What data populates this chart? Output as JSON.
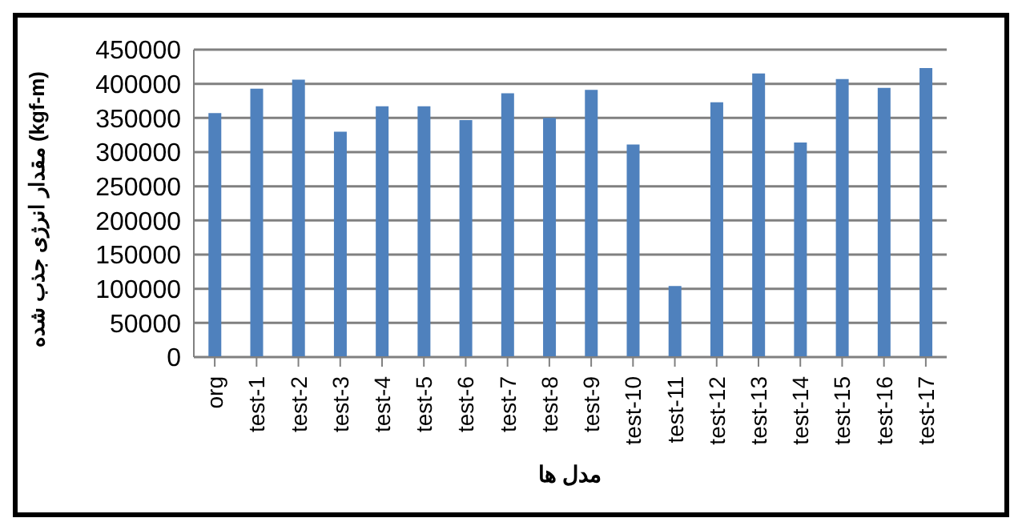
{
  "chart_data": {
    "type": "bar",
    "xlabel": "مدل ها",
    "ylabel": "مقدار انرژی جذب شده (kgf-m)",
    "categories": [
      "org",
      "test-1",
      "test-2",
      "test-3",
      "test-4",
      "test-5",
      "test-6",
      "test-7",
      "test-8",
      "test-9",
      "test-10",
      "test-11",
      "test-12",
      "test-13",
      "test-14",
      "test-15",
      "test-16",
      "test-17"
    ],
    "values": [
      357000,
      393000,
      406000,
      330000,
      367000,
      367000,
      347000,
      386000,
      350000,
      391000,
      311000,
      104000,
      373000,
      415000,
      314000,
      407000,
      394000,
      423000
    ],
    "color": "#4f81bd",
    "ylim": [
      0,
      450000
    ],
    "yticks": [
      0,
      50000,
      100000,
      150000,
      200000,
      250000,
      300000,
      350000,
      400000,
      450000
    ],
    "grid": "y",
    "legend": false
  }
}
